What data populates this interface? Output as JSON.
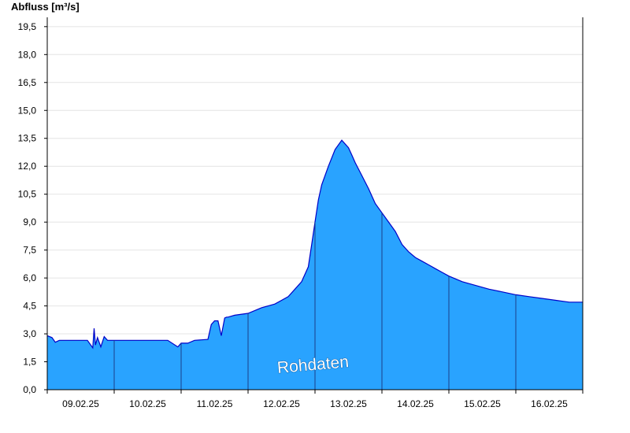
{
  "chart_data": {
    "type": "area",
    "ylabel": "Abfluss [m³/s]",
    "watermark": "Rohdaten",
    "ylim": [
      0,
      20
    ],
    "y_ticks": [
      "0,0",
      "1,5",
      "3,0",
      "4,5",
      "6,0",
      "7,5",
      "9,0",
      "10,5",
      "12,0",
      "13,5",
      "15,0",
      "16,5",
      "18,0",
      "19,5"
    ],
    "y_tick_values": [
      0,
      1.5,
      3,
      4.5,
      6,
      7.5,
      9,
      10.5,
      12,
      13.5,
      15,
      16.5,
      18,
      19.5
    ],
    "x_categories": [
      "09.02.25",
      "10.02.25",
      "11.02.25",
      "12.02.25",
      "13.02.25",
      "14.02.25",
      "15.02.25",
      "16.02.25"
    ],
    "x_day_range": [
      0,
      8
    ],
    "grid": true,
    "colors": {
      "fill": "#29a3ff",
      "line": "#0000c8",
      "day_separator": "#1a3f8a",
      "grid": "#e4e4e4"
    },
    "series": [
      {
        "x": [
          0,
          0.07,
          0.12,
          0.18,
          0.22,
          0.4,
          0.6,
          0.68,
          0.7,
          0.72,
          0.75,
          0.8,
          0.85,
          0.9,
          0.95,
          1.0,
          1.5,
          1.8,
          1.95,
          2.0,
          2.05,
          2.1,
          2.2,
          2.4,
          2.45,
          2.5,
          2.55,
          2.6,
          2.65,
          2.68,
          2.7,
          2.8,
          3.0,
          3.2,
          3.4,
          3.6,
          3.8,
          3.9,
          3.95,
          4.0,
          4.05,
          4.1,
          4.2,
          4.3,
          4.4,
          4.5,
          4.55,
          4.6,
          4.7,
          4.8,
          4.9,
          5.0,
          5.1,
          5.2,
          5.3,
          5.4,
          5.5,
          5.6,
          5.7,
          5.8,
          5.9,
          6.0,
          6.2,
          6.4,
          6.6,
          6.8,
          7.0,
          7.2,
          7.4,
          7.6,
          7.8,
          8.0
        ],
        "y": [
          2.9,
          2.8,
          2.55,
          2.65,
          2.65,
          2.65,
          2.65,
          2.25,
          3.3,
          2.4,
          2.8,
          2.3,
          2.85,
          2.65,
          2.65,
          2.65,
          2.65,
          2.65,
          2.3,
          2.5,
          2.5,
          2.5,
          2.65,
          2.7,
          3.5,
          3.7,
          3.7,
          2.9,
          3.85,
          3.9,
          3.9,
          4.0,
          4.1,
          4.4,
          4.6,
          5.0,
          5.8,
          6.6,
          7.8,
          9.0,
          10.2,
          11.0,
          12.0,
          12.9,
          13.4,
          13.0,
          12.6,
          12.2,
          11.5,
          10.8,
          10.0,
          9.5,
          9.0,
          8.5,
          7.8,
          7.4,
          7.1,
          6.9,
          6.7,
          6.5,
          6.3,
          6.1,
          5.8,
          5.6,
          5.4,
          5.25,
          5.1,
          5.0,
          4.9,
          4.8,
          4.7,
          4.7
        ]
      }
    ]
  }
}
